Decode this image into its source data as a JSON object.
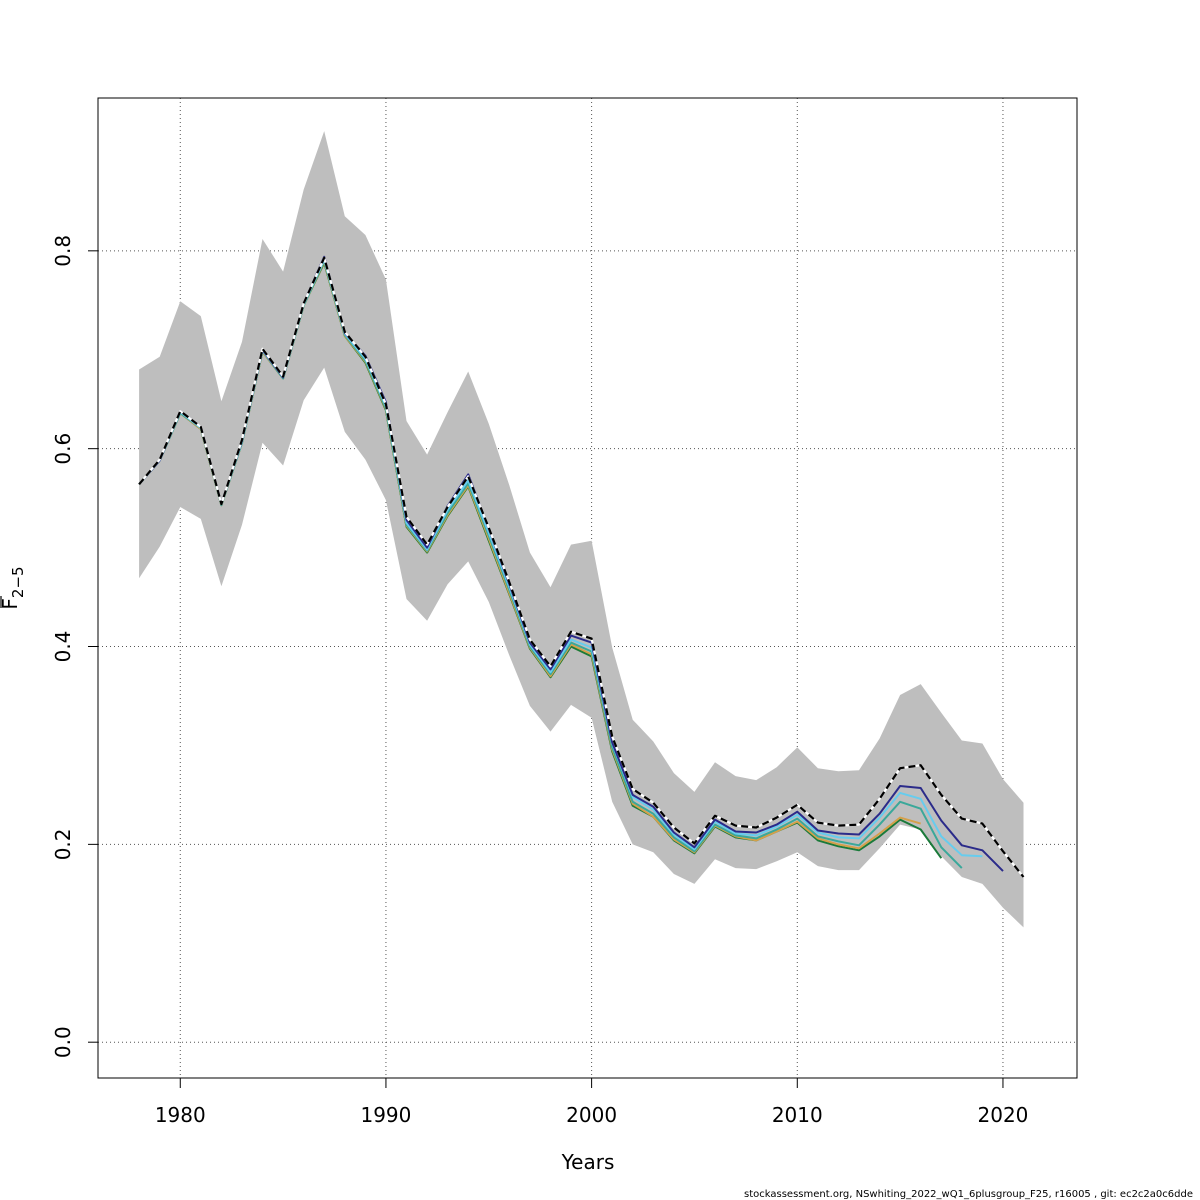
{
  "chart_data": {
    "type": "line",
    "xlabel": "Years",
    "ylabel_main": "F",
    "ylabel_sub": "2−5",
    "xlim": [
      1976,
      2023.6
    ],
    "ylim": [
      -0.0362,
      0.9545
    ],
    "xticks": [
      1980,
      1990,
      2000,
      2010,
      2020
    ],
    "yticks": [
      0.0,
      0.2,
      0.4,
      0.6,
      0.8
    ],
    "ytick_labels": [
      "0.0",
      "0.2",
      "0.4",
      "0.6",
      "0.8"
    ],
    "grid": true,
    "confidence_band": {
      "color": "#bebebe",
      "x": [
        1978,
        1979,
        1980,
        1981,
        1982,
        1983,
        1984,
        1985,
        1986,
        1987,
        1988,
        1989,
        1990,
        1991,
        1992,
        1993,
        1994,
        1995,
        1996,
        1997,
        1998,
        1999,
        2000,
        2001,
        2002,
        2003,
        2004,
        2005,
        2006,
        2007,
        2008,
        2009,
        2010,
        2011,
        2012,
        2013,
        2014,
        2015,
        2016,
        2017,
        2018,
        2019,
        2020,
        2021
      ],
      "upper": [
        0.68,
        0.693,
        0.749,
        0.734,
        0.648,
        0.708,
        0.812,
        0.779,
        0.862,
        0.921,
        0.835,
        0.816,
        0.771,
        0.628,
        0.594,
        0.637,
        0.678,
        0.625,
        0.563,
        0.495,
        0.46,
        0.503,
        0.507,
        0.399,
        0.326,
        0.304,
        0.272,
        0.253,
        0.283,
        0.269,
        0.265,
        0.278,
        0.298,
        0.277,
        0.274,
        0.275,
        0.307,
        0.351,
        0.362,
        0.333,
        0.305,
        0.302,
        0.266,
        0.242
      ],
      "lower": [
        0.469,
        0.501,
        0.541,
        0.529,
        0.461,
        0.523,
        0.606,
        0.583,
        0.649,
        0.682,
        0.617,
        0.589,
        0.548,
        0.448,
        0.426,
        0.463,
        0.486,
        0.445,
        0.391,
        0.34,
        0.314,
        0.341,
        0.328,
        0.243,
        0.2,
        0.192,
        0.17,
        0.16,
        0.185,
        0.176,
        0.175,
        0.183,
        0.192,
        0.178,
        0.174,
        0.174,
        0.196,
        0.22,
        0.215,
        0.188,
        0.167,
        0.16,
        0.136,
        0.116
      ]
    },
    "series": [
      {
        "color": "#000000",
        "dashed": true,
        "x": [
          1978,
          1979,
          1980,
          1981,
          1982,
          1983,
          1984,
          1985,
          1986,
          1987,
          1988,
          1989,
          1990,
          1991,
          1992,
          1993,
          1994,
          1995,
          1996,
          1997,
          1998,
          1999,
          2000,
          2001,
          2002,
          2003,
          2004,
          2005,
          2006,
          2007,
          2008,
          2009,
          2010,
          2011,
          2012,
          2013,
          2014,
          2015,
          2016,
          2017,
          2018,
          2019,
          2020,
          2021
        ],
        "y": [
          0.564,
          0.589,
          0.638,
          0.622,
          0.544,
          0.609,
          0.701,
          0.673,
          0.747,
          0.793,
          0.718,
          0.693,
          0.645,
          0.531,
          0.503,
          0.541,
          0.572,
          0.52,
          0.465,
          0.407,
          0.38,
          0.415,
          0.408,
          0.309,
          0.256,
          0.242,
          0.217,
          0.201,
          0.229,
          0.219,
          0.217,
          0.227,
          0.24,
          0.222,
          0.219,
          0.22,
          0.246,
          0.277,
          0.28,
          0.25,
          0.226,
          0.221,
          0.193,
          0.167
        ]
      },
      {
        "color": "#2b2b8a",
        "x": [
          1978,
          1979,
          1980,
          1981,
          1982,
          1983,
          1984,
          1985,
          1986,
          1987,
          1988,
          1989,
          1990,
          1991,
          1992,
          1993,
          1994,
          1995,
          1996,
          1997,
          1998,
          1999,
          2000,
          2001,
          2002,
          2003,
          2004,
          2005,
          2006,
          2007,
          2008,
          2009,
          2010,
          2011,
          2012,
          2013,
          2014,
          2015,
          2016,
          2017,
          2018,
          2019,
          2020
        ],
        "y": [
          0.564,
          0.588,
          0.638,
          0.622,
          0.544,
          0.608,
          0.7,
          0.672,
          0.747,
          0.794,
          0.717,
          0.694,
          0.647,
          0.528,
          0.5,
          0.542,
          0.574,
          0.519,
          0.463,
          0.404,
          0.377,
          0.411,
          0.404,
          0.303,
          0.25,
          0.238,
          0.212,
          0.197,
          0.225,
          0.213,
          0.212,
          0.22,
          0.233,
          0.214,
          0.211,
          0.21,
          0.231,
          0.259,
          0.257,
          0.224,
          0.199,
          0.194,
          0.173
        ]
      },
      {
        "color": "#66ccee",
        "x": [
          1978,
          1979,
          1980,
          1981,
          1982,
          1983,
          1984,
          1985,
          1986,
          1987,
          1988,
          1989,
          1990,
          1991,
          1992,
          1993,
          1994,
          1995,
          1996,
          1997,
          1998,
          1999,
          2000,
          2001,
          2002,
          2003,
          2004,
          2005,
          2006,
          2007,
          2008,
          2009,
          2010,
          2011,
          2012,
          2013,
          2014,
          2015,
          2016,
          2017,
          2018,
          2019
        ],
        "y": [
          0.564,
          0.588,
          0.637,
          0.621,
          0.544,
          0.607,
          0.699,
          0.672,
          0.746,
          0.791,
          0.716,
          0.691,
          0.643,
          0.525,
          0.498,
          0.538,
          0.568,
          0.515,
          0.46,
          0.402,
          0.374,
          0.407,
          0.399,
          0.302,
          0.248,
          0.235,
          0.21,
          0.195,
          0.223,
          0.211,
          0.209,
          0.218,
          0.23,
          0.212,
          0.207,
          0.206,
          0.227,
          0.252,
          0.246,
          0.208,
          0.189,
          0.188
        ]
      },
      {
        "color": "#3aa89a",
        "x": [
          1978,
          1979,
          1980,
          1981,
          1982,
          1983,
          1984,
          1985,
          1986,
          1987,
          1988,
          1989,
          1990,
          1991,
          1992,
          1993,
          1994,
          1995,
          1996,
          1997,
          1998,
          1999,
          2000,
          2001,
          2002,
          2003,
          2004,
          2005,
          2006,
          2007,
          2008,
          2009,
          2010,
          2011,
          2012,
          2013,
          2014,
          2015,
          2016,
          2017,
          2018
        ],
        "y": [
          0.564,
          0.588,
          0.636,
          0.621,
          0.543,
          0.606,
          0.699,
          0.671,
          0.745,
          0.79,
          0.715,
          0.689,
          0.641,
          0.523,
          0.497,
          0.535,
          0.565,
          0.512,
          0.457,
          0.4,
          0.372,
          0.404,
          0.395,
          0.298,
          0.243,
          0.231,
          0.207,
          0.193,
          0.22,
          0.209,
          0.206,
          0.215,
          0.226,
          0.208,
          0.203,
          0.199,
          0.22,
          0.243,
          0.236,
          0.197,
          0.176
        ]
      },
      {
        "color": "#d4a04a",
        "x": [
          1978,
          1979,
          1980,
          1981,
          1982,
          1983,
          1984,
          1985,
          1986,
          1987,
          1988,
          1989,
          1990,
          1991,
          1992,
          1993,
          1994,
          1995,
          1996,
          1997,
          1998,
          1999,
          2000,
          2001,
          2002,
          2003,
          2004,
          2005,
          2006,
          2007,
          2008,
          2009,
          2010,
          2011,
          2012,
          2013,
          2014,
          2015,
          2016
        ],
        "y": [
          0.564,
          0.588,
          0.636,
          0.62,
          0.543,
          0.606,
          0.698,
          0.671,
          0.745,
          0.789,
          0.714,
          0.688,
          0.64,
          0.522,
          0.496,
          0.533,
          0.563,
          0.509,
          0.454,
          0.399,
          0.37,
          0.402,
          0.392,
          0.296,
          0.241,
          0.228,
          0.205,
          0.192,
          0.219,
          0.208,
          0.204,
          0.213,
          0.223,
          0.206,
          0.2,
          0.196,
          0.211,
          0.227,
          0.221
        ]
      },
      {
        "color": "#1a7a3a",
        "x": [
          1978,
          1979,
          1980,
          1981,
          1982,
          1983,
          1984,
          1985,
          1986,
          1987,
          1988,
          1989,
          1990,
          1991,
          1992,
          1993,
          1994,
          1995,
          1996,
          1997,
          1998,
          1999,
          2000,
          2001,
          2002,
          2003,
          2004,
          2005,
          2006,
          2007,
          2008,
          2009,
          2010,
          2011,
          2012,
          2013,
          2014,
          2015,
          2016,
          2017
        ],
        "y": [
          0.564,
          0.588,
          0.636,
          0.62,
          0.543,
          0.606,
          0.698,
          0.671,
          0.745,
          0.788,
          0.714,
          0.687,
          0.639,
          0.521,
          0.495,
          0.532,
          0.562,
          0.507,
          0.453,
          0.398,
          0.369,
          0.4,
          0.39,
          0.294,
          0.239,
          0.228,
          0.204,
          0.191,
          0.218,
          0.207,
          0.204,
          0.213,
          0.222,
          0.204,
          0.198,
          0.194,
          0.208,
          0.225,
          0.215,
          0.186
        ]
      },
      {
        "color": "#8aa832",
        "x": [
          1978,
          1979,
          1980,
          1981,
          1982,
          1983,
          1984,
          1985,
          1986,
          1987,
          1988,
          1989,
          1990,
          1991,
          1992,
          1993,
          1994,
          1995,
          1996,
          1997,
          1998,
          1999,
          2000
        ],
        "y": [
          0.564,
          0.588,
          0.636,
          0.62,
          0.543,
          0.606,
          0.698,
          0.671,
          0.745,
          0.788,
          0.714,
          0.687,
          0.639,
          0.521,
          0.495,
          0.532,
          0.562,
          0.507,
          0.453,
          0.398,
          0.369,
          0.4,
          0.39
        ]
      }
    ]
  },
  "footer": {
    "text": "stockassessment.org, NSwhiting_2022_wQ1_6plusgroup_F25, r16005 , git: ec2c2a0c6dde"
  }
}
